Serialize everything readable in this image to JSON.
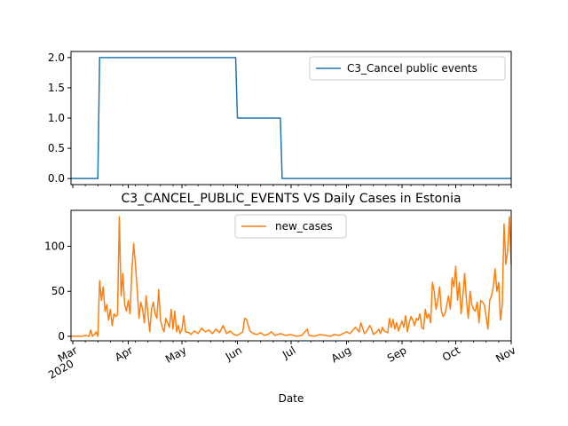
{
  "chart_data": [
    {
      "type": "line",
      "title": "",
      "xlabel": "",
      "ylabel": "",
      "ylim": [
        -0.1,
        2.1
      ],
      "yticks": [
        "0.0",
        "0.5",
        "1.0",
        "1.5",
        "2.0"
      ],
      "ytick_values": [
        0,
        0.5,
        1.0,
        1.5,
        2.0
      ],
      "legend_position": "upper right",
      "series": [
        {
          "name": "C3_Cancel public events",
          "color": "#1f77b4",
          "points": [
            [
              "2020-02-29",
              0
            ],
            [
              "2020-03-15",
              0
            ],
            [
              "2020-03-16",
              2
            ],
            [
              "2020-05-31",
              2
            ],
            [
              "2020-06-01",
              1
            ],
            [
              "2020-06-25",
              1
            ],
            [
              "2020-06-26",
              0
            ],
            [
              "2020-11-01",
              0
            ]
          ]
        }
      ]
    },
    {
      "type": "line",
      "title": "C3_CANCEL_PUBLIC_EVENTS VS Daily Cases in Estonia",
      "xlabel": "Date",
      "ylabel": "",
      "ylim": [
        -5,
        140
      ],
      "yticks": [
        "0",
        "50",
        "100"
      ],
      "ytick_values": [
        0,
        50,
        100
      ],
      "legend_position": "upper center",
      "xticks": [
        {
          "major": "Mar",
          "minor": "2020",
          "date": "2020-03-01"
        },
        {
          "major": "Apr",
          "minor": "",
          "date": "2020-04-01"
        },
        {
          "major": "May",
          "minor": "",
          "date": "2020-05-01"
        },
        {
          "major": "Jun",
          "minor": "",
          "date": "2020-06-01"
        },
        {
          "major": "Jul",
          "minor": "",
          "date": "2020-07-01"
        },
        {
          "major": "Aug",
          "minor": "",
          "date": "2020-08-01"
        },
        {
          "major": "Sep",
          "minor": "",
          "date": "2020-09-01"
        },
        {
          "major": "Oct",
          "minor": "",
          "date": "2020-10-01"
        },
        {
          "major": "Nov",
          "minor": "",
          "date": "2020-11-01"
        }
      ],
      "series": [
        {
          "name": "new_cases",
          "color": "#ff7f0e",
          "points": [
            [
              "2020-02-29",
              0
            ],
            [
              "2020-03-03",
              0
            ],
            [
              "2020-03-06",
              0
            ],
            [
              "2020-03-08",
              1
            ],
            [
              "2020-03-10",
              0
            ],
            [
              "2020-03-11",
              7
            ],
            [
              "2020-03-12",
              0
            ],
            [
              "2020-03-13",
              2
            ],
            [
              "2020-03-14",
              5
            ],
            [
              "2020-03-15",
              0
            ],
            [
              "2020-03-16",
              62
            ],
            [
              "2020-03-17",
              40
            ],
            [
              "2020-03-18",
              55
            ],
            [
              "2020-03-19",
              28
            ],
            [
              "2020-03-20",
              35
            ],
            [
              "2020-03-21",
              18
            ],
            [
              "2020-03-22",
              30
            ],
            [
              "2020-03-23",
              12
            ],
            [
              "2020-03-24",
              25
            ],
            [
              "2020-03-25",
              22
            ],
            [
              "2020-03-26",
              24
            ],
            [
              "2020-03-27",
              133
            ],
            [
              "2020-03-28",
              45
            ],
            [
              "2020-03-29",
              70
            ],
            [
              "2020-03-30",
              35
            ],
            [
              "2020-03-31",
              28
            ],
            [
              "2020-04-01",
              40
            ],
            [
              "2020-04-02",
              25
            ],
            [
              "2020-04-03",
              72
            ],
            [
              "2020-04-04",
              103
            ],
            [
              "2020-04-05",
              80
            ],
            [
              "2020-04-06",
              52
            ],
            [
              "2020-04-07",
              20
            ],
            [
              "2020-04-08",
              38
            ],
            [
              "2020-04-09",
              30
            ],
            [
              "2020-04-10",
              15
            ],
            [
              "2020-04-11",
              45
            ],
            [
              "2020-04-12",
              25
            ],
            [
              "2020-04-13",
              5
            ],
            [
              "2020-04-14",
              30
            ],
            [
              "2020-04-15",
              38
            ],
            [
              "2020-04-16",
              25
            ],
            [
              "2020-04-17",
              20
            ],
            [
              "2020-04-18",
              52
            ],
            [
              "2020-04-19",
              18
            ],
            [
              "2020-04-20",
              10
            ],
            [
              "2020-04-21",
              5
            ],
            [
              "2020-04-22",
              20
            ],
            [
              "2020-04-23",
              15
            ],
            [
              "2020-04-24",
              10
            ],
            [
              "2020-04-25",
              30
            ],
            [
              "2020-04-26",
              8
            ],
            [
              "2020-04-27",
              28
            ],
            [
              "2020-04-28",
              5
            ],
            [
              "2020-04-29",
              12
            ],
            [
              "2020-04-30",
              3
            ],
            [
              "2020-05-01",
              8
            ],
            [
              "2020-05-02",
              23
            ],
            [
              "2020-05-03",
              5
            ],
            [
              "2020-05-05",
              4
            ],
            [
              "2020-05-06",
              2
            ],
            [
              "2020-05-08",
              6
            ],
            [
              "2020-05-10",
              3
            ],
            [
              "2020-05-12",
              9
            ],
            [
              "2020-05-14",
              5
            ],
            [
              "2020-05-16",
              7
            ],
            [
              "2020-05-18",
              3
            ],
            [
              "2020-05-20",
              8
            ],
            [
              "2020-05-22",
              4
            ],
            [
              "2020-05-24",
              12
            ],
            [
              "2020-05-26",
              3
            ],
            [
              "2020-05-28",
              6
            ],
            [
              "2020-05-30",
              2
            ],
            [
              "2020-06-01",
              1
            ],
            [
              "2020-06-04",
              5
            ],
            [
              "2020-06-05",
              20
            ],
            [
              "2020-06-06",
              19
            ],
            [
              "2020-06-08",
              6
            ],
            [
              "2020-06-10",
              3
            ],
            [
              "2020-06-12",
              2
            ],
            [
              "2020-06-14",
              4
            ],
            [
              "2020-06-16",
              1
            ],
            [
              "2020-06-18",
              2
            ],
            [
              "2020-06-20",
              5
            ],
            [
              "2020-06-22",
              1
            ],
            [
              "2020-06-25",
              3
            ],
            [
              "2020-06-28",
              1
            ],
            [
              "2020-07-01",
              2
            ],
            [
              "2020-07-04",
              0
            ],
            [
              "2020-07-07",
              1
            ],
            [
              "2020-07-10",
              8
            ],
            [
              "2020-07-11",
              1
            ],
            [
              "2020-07-14",
              0
            ],
            [
              "2020-07-17",
              2
            ],
            [
              "2020-07-20",
              1
            ],
            [
              "2020-07-23",
              0
            ],
            [
              "2020-07-25",
              2
            ],
            [
              "2020-07-28",
              1
            ],
            [
              "2020-07-30",
              3
            ],
            [
              "2020-08-01",
              5
            ],
            [
              "2020-08-03",
              3
            ],
            [
              "2020-08-05",
              8
            ],
            [
              "2020-08-06",
              10
            ],
            [
              "2020-08-08",
              5
            ],
            [
              "2020-08-09",
              15
            ],
            [
              "2020-08-10",
              9
            ],
            [
              "2020-08-11",
              3
            ],
            [
              "2020-08-12",
              5
            ],
            [
              "2020-08-14",
              12
            ],
            [
              "2020-08-15",
              8
            ],
            [
              "2020-08-16",
              2
            ],
            [
              "2020-08-18",
              5
            ],
            [
              "2020-08-19",
              8
            ],
            [
              "2020-08-20",
              3
            ],
            [
              "2020-08-21",
              10
            ],
            [
              "2020-08-22",
              6
            ],
            [
              "2020-08-24",
              4
            ],
            [
              "2020-08-25",
              20
            ],
            [
              "2020-08-26",
              10
            ],
            [
              "2020-08-27",
              19
            ],
            [
              "2020-08-28",
              8
            ],
            [
              "2020-08-29",
              15
            ],
            [
              "2020-08-30",
              6
            ],
            [
              "2020-09-01",
              17
            ],
            [
              "2020-09-02",
              10
            ],
            [
              "2020-09-03",
              23
            ],
            [
              "2020-09-04",
              5
            ],
            [
              "2020-09-05",
              15
            ],
            [
              "2020-09-06",
              22
            ],
            [
              "2020-09-07",
              18
            ],
            [
              "2020-09-08",
              12
            ],
            [
              "2020-09-09",
              20
            ],
            [
              "2020-09-10",
              18
            ],
            [
              "2020-09-11",
              25
            ],
            [
              "2020-09-12",
              10
            ],
            [
              "2020-09-13",
              8
            ],
            [
              "2020-09-14",
              30
            ],
            [
              "2020-09-15",
              20
            ],
            [
              "2020-09-16",
              25
            ],
            [
              "2020-09-17",
              15
            ],
            [
              "2020-09-18",
              60
            ],
            [
              "2020-09-19",
              50
            ],
            [
              "2020-09-20",
              30
            ],
            [
              "2020-09-21",
              40
            ],
            [
              "2020-09-22",
              55
            ],
            [
              "2020-09-23",
              28
            ],
            [
              "2020-09-24",
              22
            ],
            [
              "2020-09-25",
              25
            ],
            [
              "2020-09-26",
              35
            ],
            [
              "2020-09-27",
              45
            ],
            [
              "2020-09-28",
              30
            ],
            [
              "2020-09-29",
              65
            ],
            [
              "2020-09-30",
              55
            ],
            [
              "2020-10-01",
              78
            ],
            [
              "2020-10-02",
              40
            ],
            [
              "2020-10-03",
              60
            ],
            [
              "2020-10-04",
              25
            ],
            [
              "2020-10-05",
              45
            ],
            [
              "2020-10-06",
              70
            ],
            [
              "2020-10-07",
              40
            ],
            [
              "2020-10-08",
              20
            ],
            [
              "2020-10-09",
              50
            ],
            [
              "2020-10-10",
              35
            ],
            [
              "2020-10-11",
              30
            ],
            [
              "2020-10-12",
              28
            ],
            [
              "2020-10-13",
              38
            ],
            [
              "2020-10-14",
              15
            ],
            [
              "2020-10-15",
              40
            ],
            [
              "2020-10-16",
              38
            ],
            [
              "2020-10-17",
              35
            ],
            [
              "2020-10-18",
              22
            ],
            [
              "2020-10-19",
              8
            ],
            [
              "2020-10-20",
              40
            ],
            [
              "2020-10-21",
              45
            ],
            [
              "2020-10-22",
              55
            ],
            [
              "2020-10-23",
              75
            ],
            [
              "2020-10-24",
              50
            ],
            [
              "2020-10-25",
              60
            ],
            [
              "2020-10-26",
              18
            ],
            [
              "2020-10-27",
              35
            ],
            [
              "2020-10-28",
              125
            ],
            [
              "2020-10-29",
              80
            ],
            [
              "2020-10-30",
              95
            ],
            [
              "2020-10-31",
              133
            ],
            [
              "2020-11-01",
              80
            ]
          ]
        }
      ]
    }
  ]
}
